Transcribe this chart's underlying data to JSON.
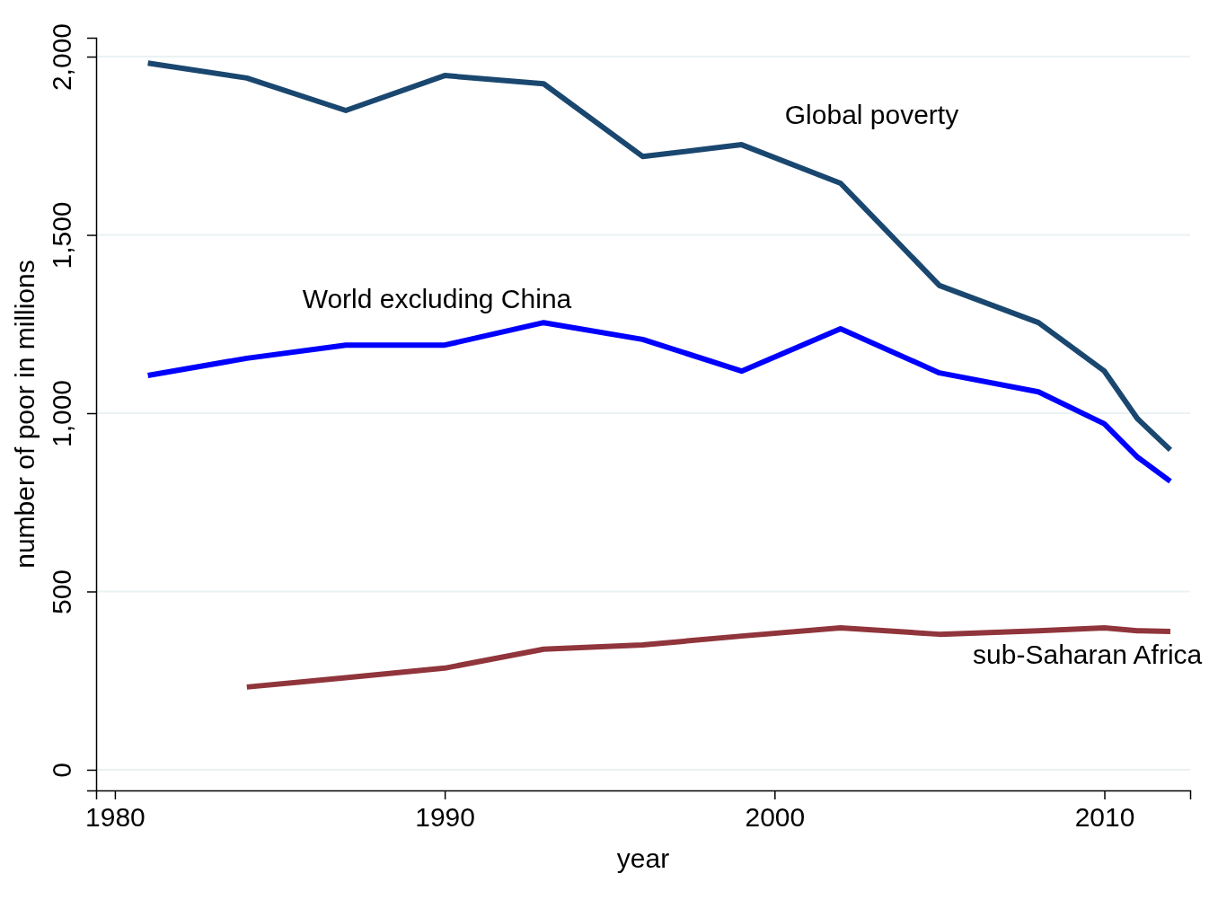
{
  "chart_data": {
    "type": "line",
    "xlabel": "year",
    "ylabel": "number of poor in millions",
    "xlim": [
      1979.43,
      2012.6
    ],
    "xticks": [
      1980,
      1990,
      2000,
      2010
    ],
    "ylim": [
      -58,
      2053
    ],
    "yticks": [
      0,
      500,
      {
        "value": 1000,
        "label": "1,000"
      },
      {
        "value": 1500,
        "label": "1,500"
      },
      {
        "value": 2000,
        "label": "2,000"
      }
    ],
    "grid": "y",
    "series": [
      {
        "name": "Global poverty",
        "color": "#1a476f",
        "x": [
          1981,
          1984,
          1987,
          1990,
          1993,
          1996,
          1999,
          2002,
          2005,
          2008,
          2010,
          2011,
          2012
        ],
        "values": [
          1982,
          1940,
          1849,
          1947,
          1924,
          1720,
          1753,
          1645,
          1358,
          1254,
          1118,
          985,
          897
        ]
      },
      {
        "name": "World excluding China",
        "color": "#0000ff",
        "x": [
          1981,
          1984,
          1987,
          1990,
          1993,
          1996,
          1999,
          2002,
          2005,
          2008,
          2010,
          2011,
          2012
        ],
        "values": [
          1106,
          1154,
          1191,
          1191,
          1254,
          1207,
          1118,
          1237,
          1113,
          1060,
          970,
          877,
          809
        ]
      },
      {
        "name": "sub-Saharan Africa",
        "color": "#90353b",
        "x": [
          1984,
          1987,
          1990,
          1993,
          1996,
          1999,
          2002,
          2005,
          2008,
          2010,
          2011,
          2012
        ],
        "values": [
          232,
          258,
          285,
          338,
          350,
          375,
          398,
          380,
          390,
          398,
          390,
          388
        ]
      }
    ]
  }
}
